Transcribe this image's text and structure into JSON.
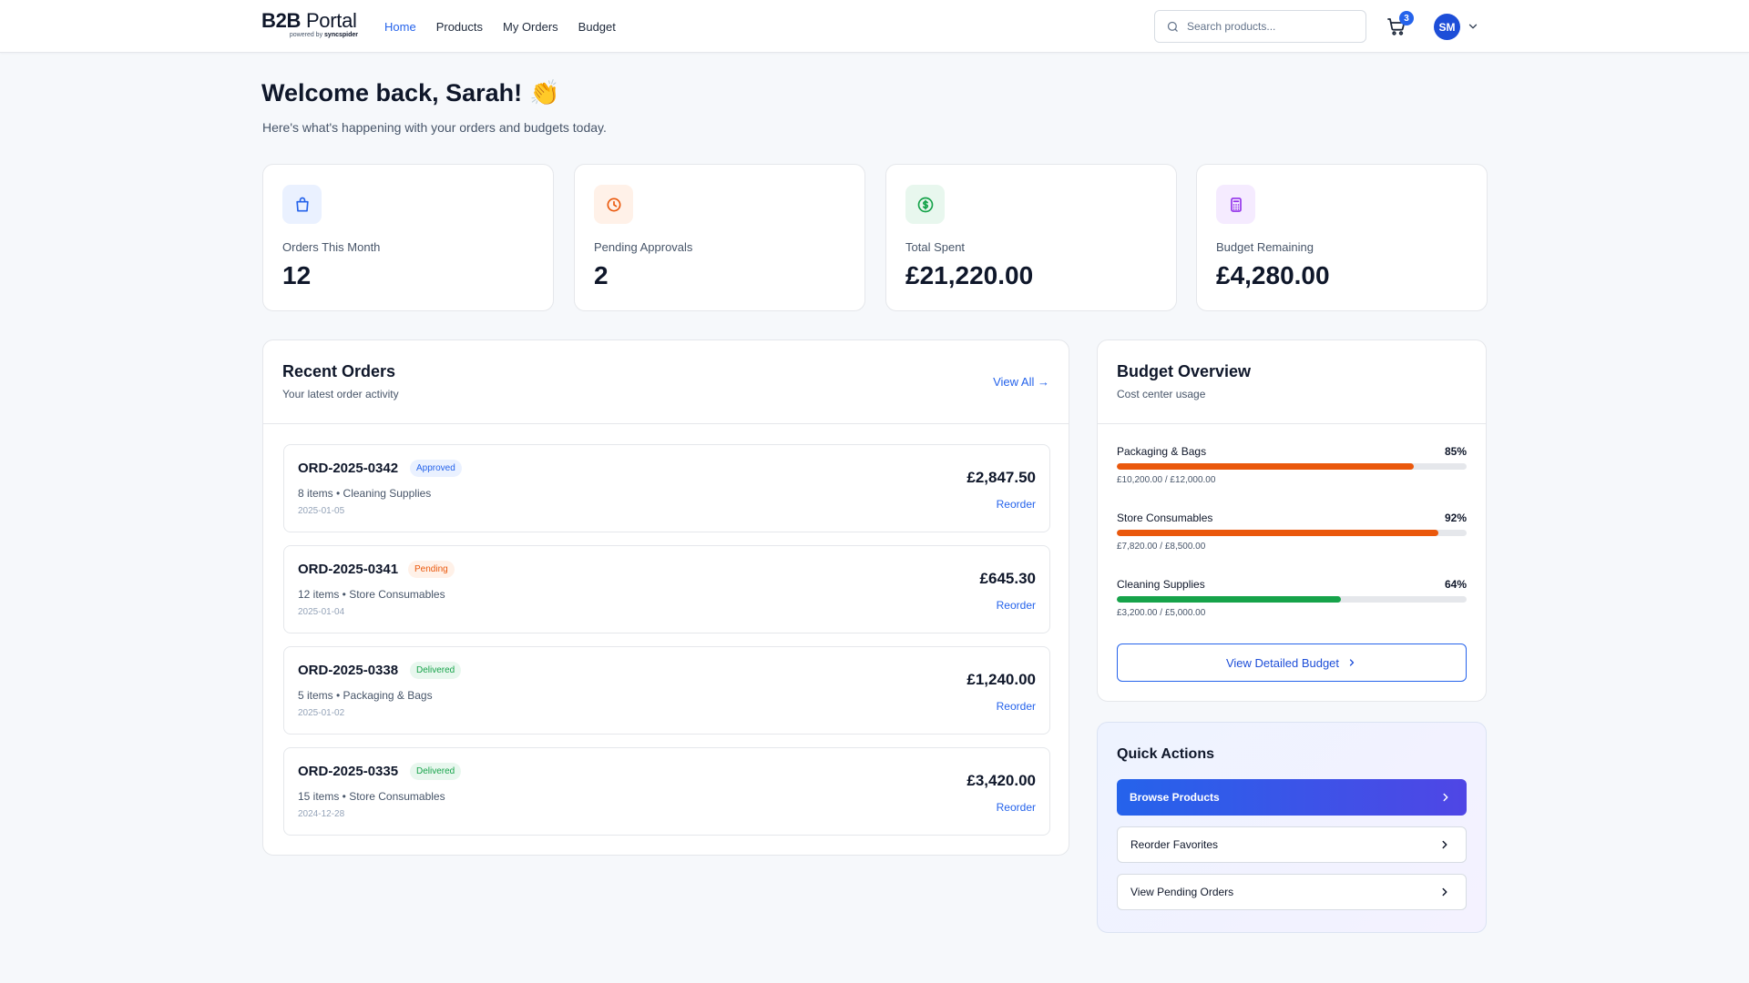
{
  "header": {
    "brand_bold": "B2B",
    "brand_light": "Portal",
    "brand_powered": "powered by",
    "brand_company": "syncspider",
    "nav": [
      "Home",
      "Products",
      "My Orders",
      "Budget"
    ],
    "search_placeholder": "Search products...",
    "cart_count": "3",
    "avatar_initials": "SM"
  },
  "welcome": {
    "title": "Welcome back, Sarah!",
    "emoji": "👏",
    "subtitle": "Here's what's happening with your orders and budgets today."
  },
  "stats": [
    {
      "label": "Orders This Month",
      "value": "12",
      "icon": "shopping-bag-icon",
      "color": "#2563eb",
      "bg": "#eaf1ff"
    },
    {
      "label": "Pending Approvals",
      "value": "2",
      "icon": "clock-icon",
      "color": "#ea580c",
      "bg": "#fff1e8"
    },
    {
      "label": "Total Spent",
      "value": "£21,220.00",
      "icon": "dollar-icon",
      "color": "#16a34a",
      "bg": "#e8f7ee"
    },
    {
      "label": "Budget Remaining",
      "value": "£4,280.00",
      "icon": "calculator-icon",
      "color": "#9333ea",
      "bg": "#f5ebff"
    }
  ],
  "recent_orders": {
    "title": "Recent Orders",
    "subtitle": "Your latest order activity",
    "view_all": "View All →",
    "reorder_label": "Reorder",
    "orders": [
      {
        "id": "ORD-2025-0342",
        "status": "Approved",
        "meta": "8 items • Cleaning Supplies",
        "date": "2025-01-05",
        "amount": "£2,847.50"
      },
      {
        "id": "ORD-2025-0341",
        "status": "Pending",
        "meta": "12 items • Store Consumables",
        "date": "2025-01-04",
        "amount": "£645.30"
      },
      {
        "id": "ORD-2025-0338",
        "status": "Delivered",
        "meta": "5 items • Packaging & Bags",
        "date": "2025-01-02",
        "amount": "£1,240.00"
      },
      {
        "id": "ORD-2025-0335",
        "status": "Delivered",
        "meta": "15 items • Store Consumables",
        "date": "2024-12-28",
        "amount": "£3,420.00"
      }
    ]
  },
  "status_colors": {
    "Approved": {
      "text": "#2563eb",
      "bg": "#eaf1ff"
    },
    "Pending": {
      "text": "#ea580c",
      "bg": "#fff1e8"
    },
    "Delivered": {
      "text": "#16a34a",
      "bg": "#e8f7ee"
    }
  },
  "budget_overview": {
    "title": "Budget Overview",
    "subtitle": "Cost center usage",
    "items": [
      {
        "name": "Packaging & Bags",
        "percent": 85,
        "percent_label": "85%",
        "amounts": "£10,200.00 / £12,000.00",
        "color": "#ea580c"
      },
      {
        "name": "Store Consumables",
        "percent": 92,
        "percent_label": "92%",
        "amounts": "£7,820.00 / £8,500.00",
        "color": "#ea580c"
      },
      {
        "name": "Cleaning Supplies",
        "percent": 64,
        "percent_label": "64%",
        "amounts": "£3,200.00 / £5,000.00",
        "color": "#16a34a"
      }
    ],
    "button": "View Detailed Budget"
  },
  "quick_actions": {
    "title": "Quick Actions",
    "buttons": [
      "Browse Products",
      "Reorder Favorites",
      "View Pending Orders"
    ]
  }
}
